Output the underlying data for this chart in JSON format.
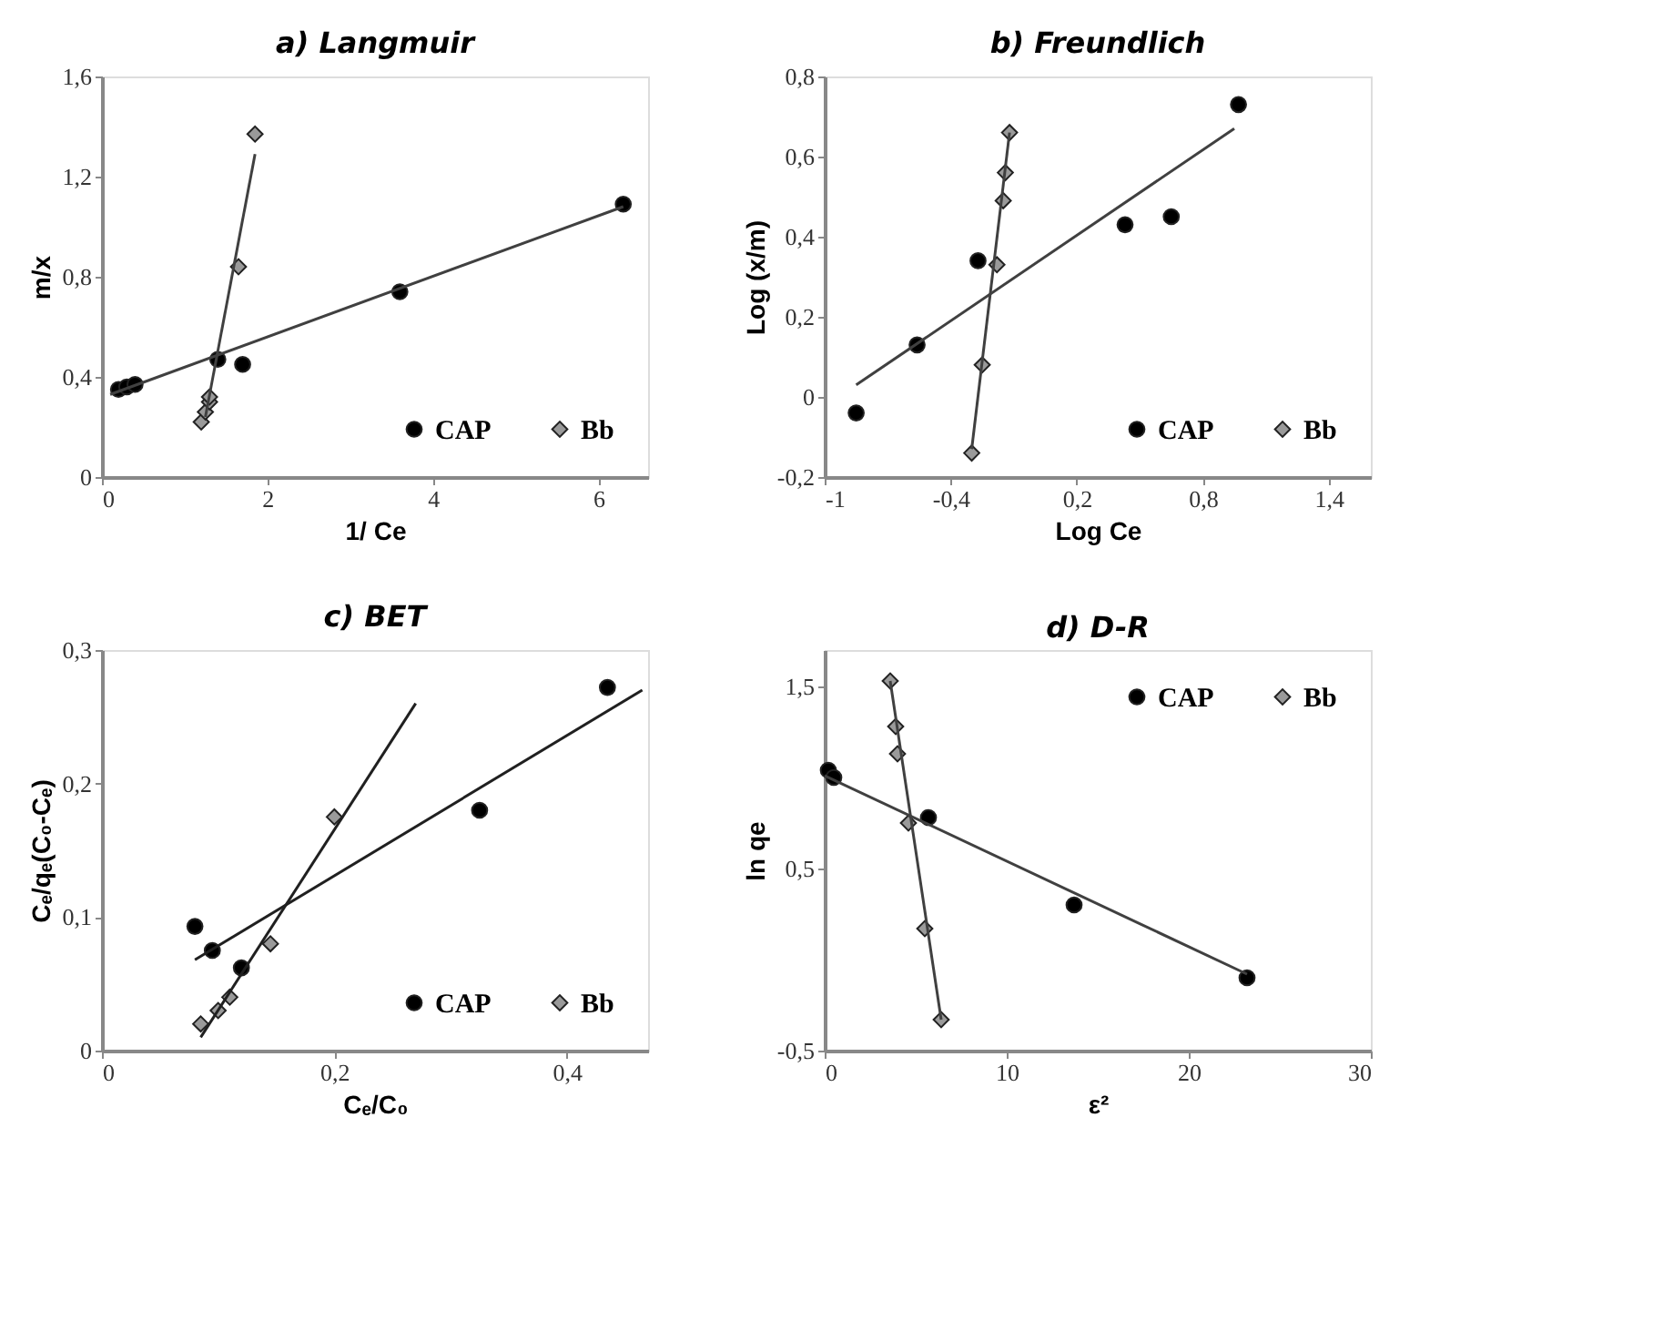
{
  "chart_data": [
    {
      "type": "scatter",
      "title": "a)  Langmuir",
      "xlabel": "1/ Ce",
      "ylabel": "m/x",
      "xlim": [
        0,
        6.6
      ],
      "xticks": [
        {
          "value": 0,
          "label": "0"
        },
        {
          "value": 2,
          "label": "2"
        },
        {
          "value": 4,
          "label": "4"
        },
        {
          "value": 6,
          "label": "6"
        }
      ],
      "ylim": [
        0,
        1.6
      ],
      "yticks": [
        {
          "value": 0,
          "label": "0"
        },
        {
          "value": 0.4,
          "label": "0,4"
        },
        {
          "value": 0.8,
          "label": "0,8"
        },
        {
          "value": 1.2,
          "label": "1,2"
        },
        {
          "value": 1.6,
          "label": "1,6"
        }
      ],
      "grid": false,
      "legend": "bottom right",
      "series": [
        {
          "name": "CAP",
          "color": "#000000",
          "marker": "circle",
          "x": [
            0.2,
            0.3,
            0.4,
            1.4,
            1.7,
            3.6,
            6.3
          ],
          "values": [
            0.35,
            0.36,
            0.37,
            0.47,
            0.45,
            0.74,
            1.09
          ]
        },
        {
          "name": "Bb",
          "color": "#9a9a9a",
          "marker": "diamond",
          "x": [
            1.2,
            1.25,
            1.3,
            1.3,
            1.65,
            1.85
          ],
          "values": [
            0.22,
            0.26,
            0.3,
            0.32,
            0.84,
            1.37
          ]
        },
        {
          "type": "line",
          "color": "#404040",
          "x": [
            0.1,
            6.3
          ],
          "values": [
            0.33,
            1.08
          ]
        },
        {
          "type": "line",
          "color": "#404040",
          "x": [
            1.25,
            1.85
          ],
          "values": [
            0.24,
            1.29
          ]
        }
      ]
    },
    {
      "type": "scatter",
      "title": "b)  Freundlich",
      "xlabel": "Log Ce",
      "ylabel": "Log (x/m)",
      "xlim": [
        -1,
        1.6
      ],
      "xticks": [
        {
          "value": -1,
          "label": "-1"
        },
        {
          "value": -0.4,
          "label": "-0,4"
        },
        {
          "value": 0.2,
          "label": "0,2"
        },
        {
          "value": 0.8,
          "label": "0,8"
        },
        {
          "value": 1.4,
          "label": "1,4"
        }
      ],
      "ylim": [
        -0.2,
        0.8
      ],
      "yticks": [
        {
          "value": -0.2,
          "label": "-0,2"
        },
        {
          "value": 0,
          "label": "0"
        },
        {
          "value": 0.2,
          "label": "0,2"
        },
        {
          "value": 0.4,
          "label": "0,4"
        },
        {
          "value": 0.6,
          "label": "0,6"
        },
        {
          "value": 0.8,
          "label": "0,8"
        }
      ],
      "grid": false,
      "legend": "bottom right",
      "series": [
        {
          "name": "CAP",
          "color": "#000000",
          "marker": "circle",
          "x": [
            -0.85,
            -0.56,
            -0.27,
            0.43,
            0.65,
            0.97
          ],
          "values": [
            -0.04,
            0.13,
            0.34,
            0.43,
            0.45,
            0.73
          ]
        },
        {
          "name": "Bb",
          "color": "#9a9a9a",
          "marker": "diamond",
          "x": [
            -0.3,
            -0.25,
            -0.18,
            -0.15,
            -0.14,
            -0.12
          ],
          "values": [
            -0.14,
            0.08,
            0.33,
            0.49,
            0.56,
            0.66
          ]
        },
        {
          "type": "line",
          "color": "#404040",
          "x": [
            -0.85,
            0.95
          ],
          "values": [
            0.03,
            0.67
          ]
        },
        {
          "type": "line",
          "color": "#404040",
          "x": [
            -0.3,
            -0.12
          ],
          "values": [
            -0.13,
            0.66
          ]
        }
      ]
    },
    {
      "type": "scatter",
      "title": "c)  BET",
      "xlabel": "Cₑ/C₀",
      "ylabel": "Cₑ/qₑ(C₀-Cₑ)",
      "xlim": [
        0,
        0.47
      ],
      "xticks": [
        {
          "value": 0,
          "label": "0"
        },
        {
          "value": 0.2,
          "label": "0,2"
        },
        {
          "value": 0.4,
          "label": "0,4"
        }
      ],
      "ylim": [
        0,
        0.3
      ],
      "yticks": [
        {
          "value": 0,
          "label": "0"
        },
        {
          "value": 0.1,
          "label": "0,1"
        },
        {
          "value": 0.2,
          "label": "0,2"
        },
        {
          "value": 0.3,
          "label": "0,3"
        }
      ],
      "grid": false,
      "legend": "bottom right",
      "series": [
        {
          "name": "CAP",
          "color": "#000000",
          "marker": "circle",
          "x": [
            0.08,
            0.095,
            0.12,
            0.325,
            0.435
          ],
          "values": [
            0.093,
            0.075,
            0.062,
            0.18,
            0.272
          ]
        },
        {
          "name": "Bb",
          "color": "#9a9a9a",
          "marker": "diamond",
          "x": [
            0.085,
            0.1,
            0.11,
            0.145,
            0.2
          ],
          "values": [
            0.02,
            0.03,
            0.04,
            0.08,
            0.175
          ]
        },
        {
          "type": "line",
          "color": "#202020",
          "x": [
            0.08,
            0.465
          ],
          "values": [
            0.068,
            0.27
          ]
        },
        {
          "type": "line",
          "color": "#202020",
          "x": [
            0.085,
            0.27
          ],
          "values": [
            0.01,
            0.26
          ]
        }
      ]
    },
    {
      "type": "scatter",
      "title": "d)     D-R",
      "xlabel": "ε²",
      "ylabel": "ln qe",
      "xlim": [
        0,
        30
      ],
      "xticks": [
        {
          "value": 0,
          "label": "0"
        },
        {
          "value": 10,
          "label": "10"
        },
        {
          "value": 20,
          "label": "20"
        },
        {
          "value": 30,
          "label": "30"
        }
      ],
      "ylim": [
        -0.5,
        1.7
      ],
      "yticks": [
        {
          "value": -0.5,
          "label": "-0,5"
        },
        {
          "value": 0.5,
          "label": "0,5"
        },
        {
          "value": 1.5,
          "label": "1,5"
        }
      ],
      "grid": false,
      "legend": "top right",
      "series": [
        {
          "name": "CAP",
          "color": "#000000",
          "marker": "circle",
          "x": [
            0.2,
            0.5,
            5.7,
            13.7,
            23.2
          ],
          "values": [
            1.04,
            1.0,
            0.78,
            0.3,
            -0.1
          ]
        },
        {
          "name": "Bb",
          "color": "#9a9a9a",
          "marker": "diamond",
          "x": [
            3.6,
            3.9,
            4.0,
            4.6,
            5.5,
            6.4
          ],
          "values": [
            1.53,
            1.28,
            1.13,
            0.75,
            0.17,
            -0.33
          ]
        },
        {
          "type": "line",
          "color": "#404040",
          "x": [
            0,
            23.2
          ],
          "values": [
            1.01,
            -0.08
          ]
        },
        {
          "type": "line",
          "color": "#404040",
          "x": [
            3.6,
            6.4
          ],
          "values": [
            1.53,
            -0.33
          ]
        }
      ]
    }
  ]
}
